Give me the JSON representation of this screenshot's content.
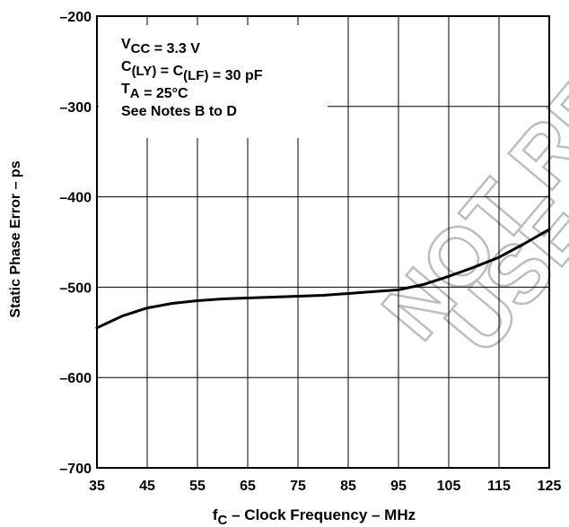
{
  "chart_data": {
    "type": "line",
    "title": "",
    "xlabel": {
      "main": "f",
      "sub": "C",
      "rest": " – Clock Frequency – MHz"
    },
    "ylabel": "Static Phase Error – ps",
    "xlim": [
      35,
      125
    ],
    "ylim": [
      -700,
      -200
    ],
    "x_ticks": [
      35,
      45,
      55,
      65,
      75,
      85,
      95,
      105,
      115,
      125
    ],
    "y_ticks": [
      -200,
      -300,
      -400,
      -500,
      -600,
      -700
    ],
    "x_tick_labels": [
      "35",
      "45",
      "55",
      "65",
      "75",
      "85",
      "95",
      "105",
      "115",
      "125"
    ],
    "y_tick_labels": [
      "–200",
      "–300",
      "–400",
      "–500",
      "–600",
      "–700"
    ],
    "grid": true,
    "line_color": "#000000",
    "series": [
      {
        "x": [
          35,
          40,
          45,
          50,
          55,
          60,
          65,
          70,
          75,
          80,
          85,
          90,
          95,
          100,
          105,
          110,
          115,
          120,
          125
        ],
        "y": [
          -545,
          -532,
          -523,
          -518,
          -515,
          -513,
          -512,
          -511,
          -510,
          -509,
          -507,
          -505,
          -503,
          -497,
          -488,
          -478,
          -467,
          -452,
          -436
        ]
      }
    ],
    "annotations": [
      {
        "parts": [
          {
            "t": "V"
          },
          {
            "t": "CC",
            "sub": true
          },
          {
            "t": " = 3.3 V"
          }
        ]
      },
      {
        "parts": [
          {
            "t": "C"
          },
          {
            "t": "(LY)",
            "sub": true
          },
          {
            "t": " = C"
          },
          {
            "t": "(LF)",
            "sub": true
          },
          {
            "t": " = 30 pF"
          }
        ]
      },
      {
        "parts": [
          {
            "t": "T"
          },
          {
            "t": "A",
            "sub": true
          },
          {
            "t": " = 25°C"
          }
        ]
      },
      {
        "parts": [
          {
            "t": "See Notes B to D"
          }
        ]
      }
    ],
    "watermark": [
      "NOT RECOMMENDED",
      "USE CDCVF"
    ]
  }
}
